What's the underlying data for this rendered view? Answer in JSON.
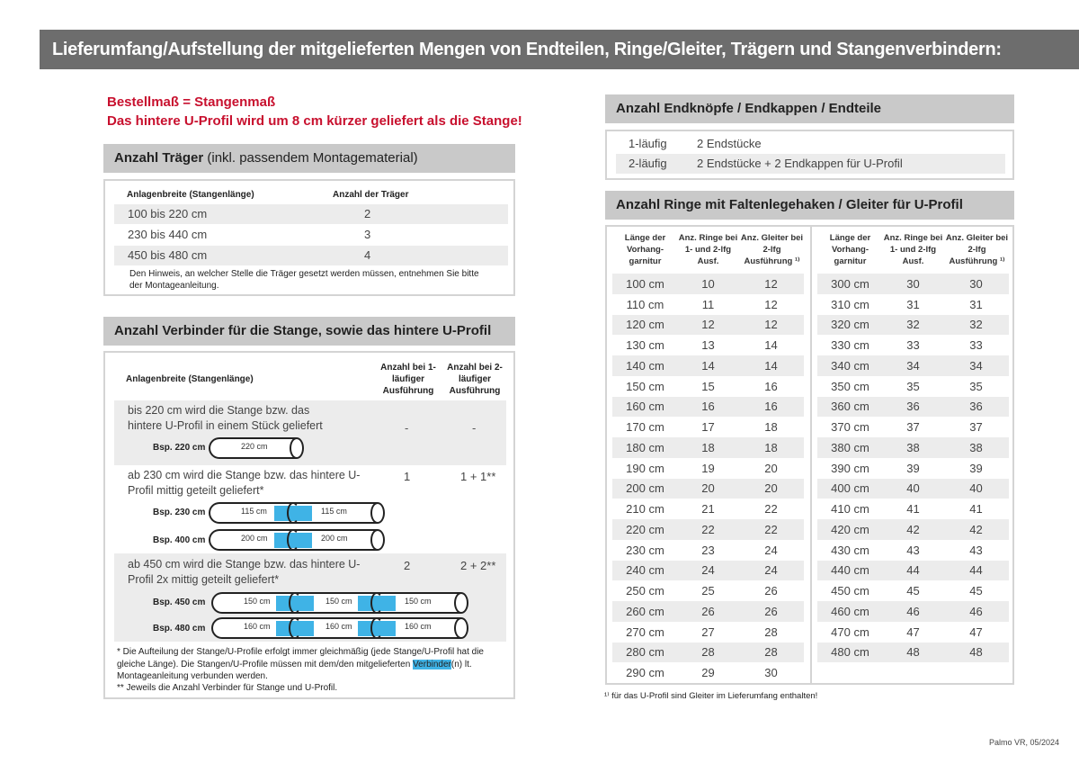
{
  "title": "Lieferumfang/Aufstellung der mitgelieferten Mengen von Endteilen, Ringe/Gleiter, Trägern und Stangenverbindern:",
  "notice": {
    "line1": "Bestellmaß = Stangenmaß",
    "line2": "Das hintere U-Profil wird um 8 cm kürzer geliefert als die Stange!"
  },
  "traeger": {
    "heading_bold": "Anzahl Träger",
    "heading_light": " (inkl. passendem Montagematerial)",
    "col1": "Anlagenbreite (Stangenlänge)",
    "col2": "Anzahl der Träger",
    "rows": [
      {
        "range": "100 bis 220 cm",
        "count": "2"
      },
      {
        "range": "230 bis 440 cm",
        "count": "3"
      },
      {
        "range": "450 bis 480 cm",
        "count": "4"
      }
    ],
    "note": "Den Hinweis, an welcher Stelle die Träger gesetzt werden müssen, entnehmen Sie bitte der Montageanleitung."
  },
  "verbinder": {
    "heading": "Anzahl Verbinder für die Stange, sowie das hintere U-Profil",
    "col1": "Anlagenbreite (Stangenlänge)",
    "col2": "Anzahl bei 1-läufiger Ausführung",
    "col3": "Anzahl bei 2-läufiger Ausführung",
    "groups": [
      {
        "text": "bis 220 cm wird die Stange bzw. das hintere U-Profil in einem Stück geliefert",
        "one": "-",
        "two": "-",
        "examples": [
          {
            "label": "Bsp. 220 cm",
            "segments": [
              "220 cm"
            ]
          }
        ]
      },
      {
        "text": "ab 230 cm wird die Stange bzw. das hintere U-Profil mittig geteilt geliefert*",
        "one": "1",
        "two": "1 + 1**",
        "examples": [
          {
            "label": "Bsp. 230 cm",
            "segments": [
              "115 cm",
              "115 cm"
            ]
          },
          {
            "label": "Bsp. 400 cm",
            "segments": [
              "200 cm",
              "200 cm"
            ]
          }
        ]
      },
      {
        "text": "ab 450 cm wird die Stange bzw. das hintere U-Profil 2x mittig geteilt geliefert*",
        "one": "2",
        "two": "2 + 2**",
        "examples": [
          {
            "label": "Bsp. 450 cm",
            "segments": [
              "150 cm",
              "150 cm",
              "150 cm"
            ]
          },
          {
            "label": "Bsp. 480 cm",
            "segments": [
              "160 cm",
              "160 cm",
              "160 cm"
            ]
          }
        ]
      }
    ],
    "footnote1_a": "* Die Aufteilung der Stange/U-Profile erfolgt immer gleichmäßig (jede Stange/U-Profil hat die gleiche Länge). Die Stangen/U-Profile müssen mit dem/den mitgelieferten ",
    "footnote1_hl": "Verbinder",
    "footnote1_b": "(n) lt. Montageanleitung verbunden werden.",
    "footnote2": "** Jeweils die Anzahl Verbinder für Stange und U-Profil."
  },
  "endteile": {
    "heading": "Anzahl Endknöpfe / Endkappen / Endteile",
    "rows": [
      {
        "type": "1-läufig",
        "value": "2 Endstücke"
      },
      {
        "type": "2-läufig",
        "value": "2 Endstücke + 2 Endkappen für U-Profil"
      }
    ]
  },
  "ringe": {
    "heading": "Anzahl Ringe mit Faltenlegehaken / Gleiter für U-Profil",
    "headers": [
      "Länge der Vorhang-garnitur",
      "Anz. Ringe bei 1- und 2-lfg Ausf.",
      "Anz. Gleiter bei 2-lfg Ausführung ¹⁾"
    ],
    "left": [
      [
        "100 cm",
        "10",
        "12"
      ],
      [
        "110 cm",
        "11",
        "12"
      ],
      [
        "120 cm",
        "12",
        "12"
      ],
      [
        "130 cm",
        "13",
        "14"
      ],
      [
        "140 cm",
        "14",
        "14"
      ],
      [
        "150 cm",
        "15",
        "16"
      ],
      [
        "160 cm",
        "16",
        "16"
      ],
      [
        "170 cm",
        "17",
        "18"
      ],
      [
        "180 cm",
        "18",
        "18"
      ],
      [
        "190 cm",
        "19",
        "20"
      ],
      [
        "200 cm",
        "20",
        "20"
      ],
      [
        "210 cm",
        "21",
        "22"
      ],
      [
        "220 cm",
        "22",
        "22"
      ],
      [
        "230 cm",
        "23",
        "24"
      ],
      [
        "240 cm",
        "24",
        "24"
      ],
      [
        "250 cm",
        "25",
        "26"
      ],
      [
        "260 cm",
        "26",
        "26"
      ],
      [
        "270 cm",
        "27",
        "28"
      ],
      [
        "280 cm",
        "28",
        "28"
      ],
      [
        "290 cm",
        "29",
        "30"
      ]
    ],
    "right": [
      [
        "300 cm",
        "30",
        "30"
      ],
      [
        "310 cm",
        "31",
        "31"
      ],
      [
        "320 cm",
        "32",
        "32"
      ],
      [
        "330 cm",
        "33",
        "33"
      ],
      [
        "340 cm",
        "34",
        "34"
      ],
      [
        "350 cm",
        "35",
        "35"
      ],
      [
        "360 cm",
        "36",
        "36"
      ],
      [
        "370 cm",
        "37",
        "37"
      ],
      [
        "380 cm",
        "38",
        "38"
      ],
      [
        "390 cm",
        "39",
        "39"
      ],
      [
        "400 cm",
        "40",
        "40"
      ],
      [
        "410 cm",
        "41",
        "41"
      ],
      [
        "420 cm",
        "42",
        "42"
      ],
      [
        "430 cm",
        "43",
        "43"
      ],
      [
        "440 cm",
        "44",
        "44"
      ],
      [
        "450 cm",
        "45",
        "45"
      ],
      [
        "460 cm",
        "46",
        "46"
      ],
      [
        "470 cm",
        "47",
        "47"
      ],
      [
        "480 cm",
        "48",
        "48"
      ]
    ],
    "footnote": "¹⁾ für das U-Profil sind Gleiter im Lieferumfang enthalten!"
  },
  "footer": "Palmo VR, 05/2024",
  "colors": {
    "title_bar": "#6d6d6d",
    "section_header": "#c9c9c9",
    "notice_red": "#c8102e",
    "connector_blue": "#3fb3e6"
  }
}
